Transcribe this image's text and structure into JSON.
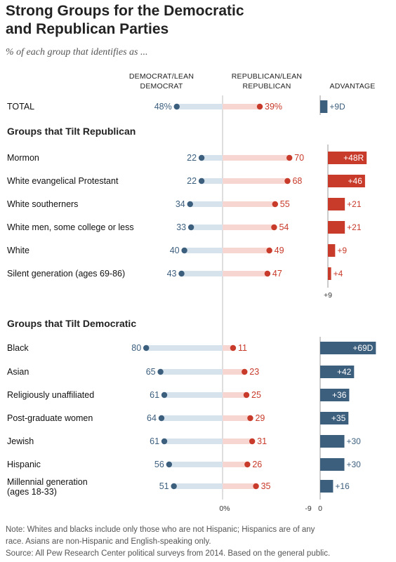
{
  "title_line1": "Strong Groups for the Democratic",
  "title_line2": "and Republican Parties",
  "subtitle": "% of each group that identifies as ...",
  "col_dem_line1": "DEMOCRAT/LEAN",
  "col_dem_line2": "DEMOCRAT",
  "col_rep_line1": "REPUBLICAN/LEAN",
  "col_rep_line2": "REPUBLICAN",
  "col_adv": "ADVANTAGE",
  "section_rep": "Groups that Tilt Republican",
  "section_dem": "Groups that Tilt Democratic",
  "axis_zero_pct": "0%",
  "axis_rep_tick": "+9",
  "axis_dem_tick_neg": "-9",
  "axis_dem_tick_zero": "0",
  "note_line1": "Note: Whites and blacks include only those who are not Hispanic; Hispanics are of any",
  "note_line2": "race. Asians are non-Hispanic and English-speaking only.",
  "source": "Source: All Pew Research Center political surveys from 2014. Based on the general public.",
  "colors": {
    "dem": "#3d5f7e",
    "rep": "#c83a2a",
    "dem_bar": "#d7e3ec",
    "rep_bar": "#f7d6d1"
  },
  "chart_data": {
    "type": "dot",
    "groups": [
      {
        "section": "total",
        "label": [
          "TOTAL"
        ],
        "dem": 48,
        "rep": 39,
        "dem_text": "48%",
        "rep_text": "39%",
        "advantage": 9,
        "adv_party": "D",
        "adv_text": "+9D"
      },
      {
        "section": "rep",
        "label": [
          "Mormon"
        ],
        "dem": 22,
        "rep": 70,
        "dem_text": "22",
        "rep_text": "70",
        "advantage": 48,
        "adv_party": "R",
        "adv_text": "+48R"
      },
      {
        "section": "rep",
        "label": [
          "White evangelical Protestant"
        ],
        "dem": 22,
        "rep": 68,
        "dem_text": "22",
        "rep_text": "68",
        "advantage": 46,
        "adv_party": "R",
        "adv_text": "+46"
      },
      {
        "section": "rep",
        "label": [
          "White southerners"
        ],
        "dem": 34,
        "rep": 55,
        "dem_text": "34",
        "rep_text": "55",
        "advantage": 21,
        "adv_party": "R",
        "adv_text": "+21"
      },
      {
        "section": "rep",
        "label": [
          "White men, some college or less"
        ],
        "dem": 33,
        "rep": 54,
        "dem_text": "33",
        "rep_text": "54",
        "advantage": 21,
        "adv_party": "R",
        "adv_text": "+21"
      },
      {
        "section": "rep",
        "label": [
          "White"
        ],
        "dem": 40,
        "rep": 49,
        "dem_text": "40",
        "rep_text": "49",
        "advantage": 9,
        "adv_party": "R",
        "adv_text": "+9"
      },
      {
        "section": "rep",
        "label": [
          "Silent generation (ages 69-86)"
        ],
        "dem": 43,
        "rep": 47,
        "dem_text": "43",
        "rep_text": "47",
        "advantage": 4,
        "adv_party": "R",
        "adv_text": "+4"
      },
      {
        "section": "dem",
        "label": [
          "Black"
        ],
        "dem": 80,
        "rep": 11,
        "dem_text": "80",
        "rep_text": "11",
        "advantage": 69,
        "adv_party": "D",
        "adv_text": "+69D"
      },
      {
        "section": "dem",
        "label": [
          "Asian"
        ],
        "dem": 65,
        "rep": 23,
        "dem_text": "65",
        "rep_text": "23",
        "advantage": 42,
        "adv_party": "D",
        "adv_text": "+42"
      },
      {
        "section": "dem",
        "label": [
          "Religiously unaffiliated"
        ],
        "dem": 61,
        "rep": 25,
        "dem_text": "61",
        "rep_text": "25",
        "advantage": 36,
        "adv_party": "D",
        "adv_text": "+36"
      },
      {
        "section": "dem",
        "label": [
          "Post-graduate women"
        ],
        "dem": 64,
        "rep": 29,
        "dem_text": "64",
        "rep_text": "29",
        "advantage": 35,
        "adv_party": "D",
        "adv_text": "+35"
      },
      {
        "section": "dem",
        "label": [
          "Jewish"
        ],
        "dem": 61,
        "rep": 31,
        "dem_text": "61",
        "rep_text": "31",
        "advantage": 30,
        "adv_party": "D",
        "adv_text": "+30"
      },
      {
        "section": "dem",
        "label": [
          "Hispanic"
        ],
        "dem": 56,
        "rep": 26,
        "dem_text": "56",
        "rep_text": "26",
        "advantage": 30,
        "adv_party": "D",
        "adv_text": "+30"
      },
      {
        "section": "dem",
        "label": [
          "Millennial generation",
          "(ages 18-33)"
        ],
        "dem": 51,
        "rep": 35,
        "dem_text": "51",
        "rep_text": "35",
        "advantage": 16,
        "adv_party": "D",
        "adv_text": "+16"
      }
    ]
  }
}
